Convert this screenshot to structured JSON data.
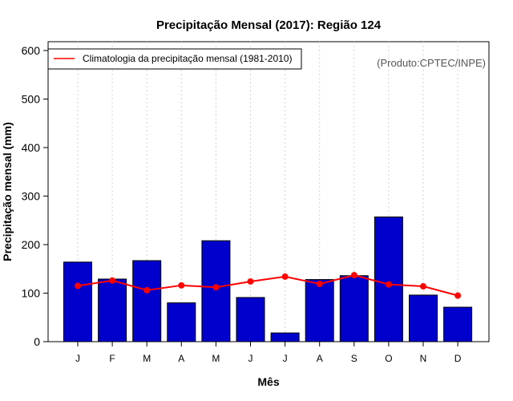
{
  "chart_data": {
    "type": "bar",
    "title": "Precipitação Mensal (2017): Região 124",
    "xlabel": "Mês",
    "ylabel": "Precipitação mensal (mm)",
    "ylim": [
      0,
      600
    ],
    "yticks": [
      0,
      100,
      200,
      300,
      400,
      500,
      600
    ],
    "grid": "vertical dotted",
    "categories": [
      "J",
      "F",
      "M",
      "A",
      "M",
      "J",
      "J",
      "A",
      "S",
      "O",
      "N",
      "D"
    ],
    "series": [
      {
        "name": "Precipitação mensal 2017",
        "type": "bar",
        "color": "#0000cd",
        "values": [
          164,
          129,
          167,
          80,
          208,
          91,
          18,
          128,
          136,
          257,
          96,
          71
        ]
      },
      {
        "name": "Climatologia da precipitação mensal (1981-2010)",
        "type": "line",
        "color": "#ff0000",
        "values": [
          115,
          126,
          106,
          116,
          112,
          124,
          134,
          119,
          137,
          118,
          114,
          95
        ]
      }
    ],
    "legend": {
      "position": "top-left",
      "entries": [
        "Climatologia da precipitação mensal (1981-2010)"
      ]
    },
    "annotation": "(Produto:CPTEC/INPE)"
  }
}
